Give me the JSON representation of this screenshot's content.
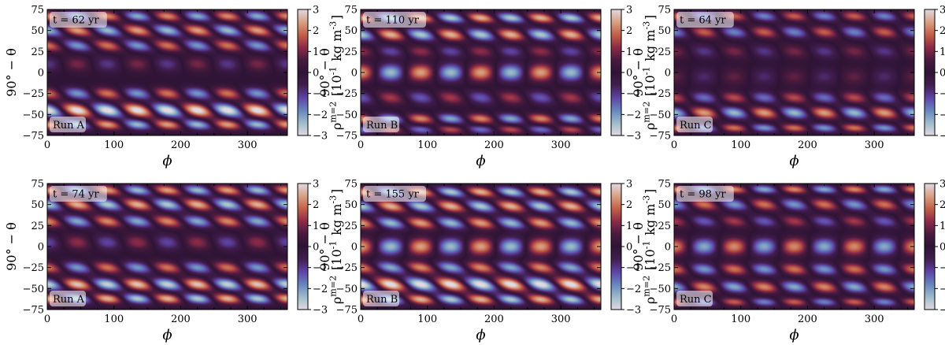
{
  "figure": {
    "xlabel": "ϕ",
    "ylabel_main": "90° − θ",
    "colorbar_label": "ρ^{m=2} [10^{-1} kg m^{-3}]",
    "colormap": "twilight_shifted",
    "colors": {
      "cmap_stops": [
        "#e2d9e2",
        "#9ebbc9",
        "#6785be",
        "#5e43a5",
        "#421e4f",
        "#2f1436",
        "#481b3e",
        "#8d2a48",
        "#c26047",
        "#d9a084",
        "#e2d9e2"
      ]
    }
  },
  "chart_data": [
    {
      "type": "heatmap",
      "run_label": "Run A",
      "time_label": "t = 62 yr",
      "x": [
        0,
        360
      ],
      "y": [
        -75,
        75
      ],
      "xticks": [
        0,
        100,
        200,
        300
      ],
      "yticks": [
        -75,
        -50,
        -25,
        0,
        25,
        50,
        75
      ],
      "colorbar_ticks": [
        -3,
        -2,
        -1,
        0,
        1,
        2,
        3
      ],
      "vmin": -3,
      "vmax": 3,
      "bands": [
        {
          "lat": 67,
          "amp": 2.2,
          "tilt": 0.35,
          "width": 6
        },
        {
          "lat": 50,
          "amp": -2.4,
          "tilt": 0.45,
          "width": 7
        },
        {
          "lat": 32,
          "amp": 2.0,
          "tilt": 0.4,
          "width": 7
        },
        {
          "lat": 10,
          "amp": -1.0,
          "tilt": 0.1,
          "width": 9
        },
        {
          "lat": -25,
          "amp": 2.0,
          "tilt": 0.3,
          "width": 7
        },
        {
          "lat": -45,
          "amp": -3.2,
          "tilt": 0.4,
          "width": 8
        },
        {
          "lat": -62,
          "amp": 2.4,
          "tilt": 0.35,
          "width": 6
        }
      ]
    },
    {
      "type": "heatmap",
      "run_label": "Run B",
      "time_label": "t = 110 yr",
      "x": [
        0,
        360
      ],
      "y": [
        -75,
        75
      ],
      "xticks": [
        0,
        100,
        200,
        300
      ],
      "yticks": [
        -75,
        -50,
        -25,
        0,
        25,
        50,
        75
      ],
      "colorbar_ticks": [
        -3,
        -2,
        -1,
        0,
        1,
        2,
        3
      ],
      "vmin": -3,
      "vmax": 3,
      "bands": [
        {
          "lat": 65,
          "amp": 2.6,
          "tilt": 0.4,
          "width": 6
        },
        {
          "lat": 45,
          "amp": -2.6,
          "tilt": 0.35,
          "width": 7
        },
        {
          "lat": 25,
          "amp": 1.2,
          "tilt": 0.2,
          "width": 7
        },
        {
          "lat": 0,
          "amp": 2.4,
          "tilt": 0.0,
          "width": 10
        },
        {
          "lat": -30,
          "amp": -1.4,
          "tilt": 0.25,
          "width": 8
        },
        {
          "lat": -55,
          "amp": 2.2,
          "tilt": 0.3,
          "width": 6
        },
        {
          "lat": -68,
          "amp": -1.6,
          "tilt": 0.3,
          "width": 5
        }
      ]
    },
    {
      "type": "heatmap",
      "run_label": "Run C",
      "time_label": "t = 64 yr",
      "x": [
        0,
        360
      ],
      "y": [
        -75,
        75
      ],
      "xticks": [
        0,
        100,
        200,
        300
      ],
      "yticks": [
        -75,
        -50,
        -25,
        0,
        25,
        50,
        75
      ],
      "colorbar_ticks": [
        -3,
        -2,
        -1,
        0,
        1,
        2,
        3
      ],
      "vmin": -3,
      "vmax": 3,
      "bands": [
        {
          "lat": 67,
          "amp": 1.8,
          "tilt": 0.3,
          "width": 6
        },
        {
          "lat": 48,
          "amp": -1.8,
          "tilt": 0.3,
          "width": 7
        },
        {
          "lat": 25,
          "amp": 1.0,
          "tilt": 0.2,
          "width": 8
        },
        {
          "lat": -5,
          "amp": 0.8,
          "tilt": 0.0,
          "width": 10
        },
        {
          "lat": -30,
          "amp": 1.6,
          "tilt": 0.25,
          "width": 7
        },
        {
          "lat": -48,
          "amp": -2.4,
          "tilt": 0.3,
          "width": 7
        },
        {
          "lat": -66,
          "amp": 2.0,
          "tilt": 0.3,
          "width": 5
        }
      ]
    },
    {
      "type": "heatmap",
      "run_label": "Run A",
      "time_label": "t = 74 yr",
      "x": [
        0,
        360
      ],
      "y": [
        -75,
        75
      ],
      "xticks": [
        0,
        100,
        200,
        300
      ],
      "yticks": [
        -75,
        -50,
        -25,
        0,
        25,
        50,
        75
      ],
      "colorbar_ticks": [
        -3,
        -2,
        -1,
        0,
        1,
        2,
        3
      ],
      "vmin": -3,
      "vmax": 3,
      "bands": [
        {
          "lat": 67,
          "amp": 2.4,
          "tilt": 0.4,
          "width": 6
        },
        {
          "lat": 50,
          "amp": -2.6,
          "tilt": 0.45,
          "width": 7
        },
        {
          "lat": 30,
          "amp": 2.2,
          "tilt": 0.4,
          "width": 7
        },
        {
          "lat": 5,
          "amp": -1.2,
          "tilt": 0.15,
          "width": 9
        },
        {
          "lat": -25,
          "amp": 2.0,
          "tilt": 0.35,
          "width": 7
        },
        {
          "lat": -45,
          "amp": -2.8,
          "tilt": 0.4,
          "width": 7
        },
        {
          "lat": -62,
          "amp": 2.6,
          "tilt": 0.35,
          "width": 6
        }
      ]
    },
    {
      "type": "heatmap",
      "run_label": "Run B",
      "time_label": "t = 155 yr",
      "x": [
        0,
        360
      ],
      "y": [
        -75,
        75
      ],
      "xticks": [
        0,
        100,
        200,
        300
      ],
      "yticks": [
        -75,
        -50,
        -25,
        0,
        25,
        50,
        75
      ],
      "colorbar_ticks": [
        -3,
        -2,
        -1,
        0,
        1,
        2,
        3
      ],
      "vmin": -3,
      "vmax": 3,
      "bands": [
        {
          "lat": 65,
          "amp": 2.6,
          "tilt": 0.45,
          "width": 6
        },
        {
          "lat": 48,
          "amp": -2.6,
          "tilt": 0.45,
          "width": 7
        },
        {
          "lat": 28,
          "amp": 2.4,
          "tilt": 0.4,
          "width": 7
        },
        {
          "lat": 0,
          "amp": 2.4,
          "tilt": 0.0,
          "width": 10
        },
        {
          "lat": -25,
          "amp": 2.2,
          "tilt": 0.4,
          "width": 7
        },
        {
          "lat": -45,
          "amp": -3.2,
          "tilt": 0.45,
          "width": 8
        },
        {
          "lat": -63,
          "amp": 2.6,
          "tilt": 0.4,
          "width": 6
        }
      ]
    },
    {
      "type": "heatmap",
      "run_label": "Run C",
      "time_label": "t = 98 yr",
      "x": [
        0,
        360
      ],
      "y": [
        -75,
        75
      ],
      "xticks": [
        0,
        100,
        200,
        300
      ],
      "yticks": [
        -75,
        -50,
        -25,
        0,
        25,
        50,
        75
      ],
      "colorbar_ticks": [
        -3,
        -2,
        -1,
        0,
        1,
        2,
        3
      ],
      "vmin": -3,
      "vmax": 3,
      "bands": [
        {
          "lat": 68,
          "amp": 2.2,
          "tilt": 0.3,
          "width": 5
        },
        {
          "lat": 50,
          "amp": -2.0,
          "tilt": 0.35,
          "width": 7
        },
        {
          "lat": 30,
          "amp": 1.4,
          "tilt": 0.3,
          "width": 7
        },
        {
          "lat": 0,
          "amp": 2.2,
          "tilt": 0.0,
          "width": 10
        },
        {
          "lat": -27,
          "amp": 2.0,
          "tilt": 0.25,
          "width": 7
        },
        {
          "lat": -48,
          "amp": -2.2,
          "tilt": 0.3,
          "width": 7
        },
        {
          "lat": -66,
          "amp": 1.8,
          "tilt": 0.3,
          "width": 5
        }
      ]
    }
  ]
}
